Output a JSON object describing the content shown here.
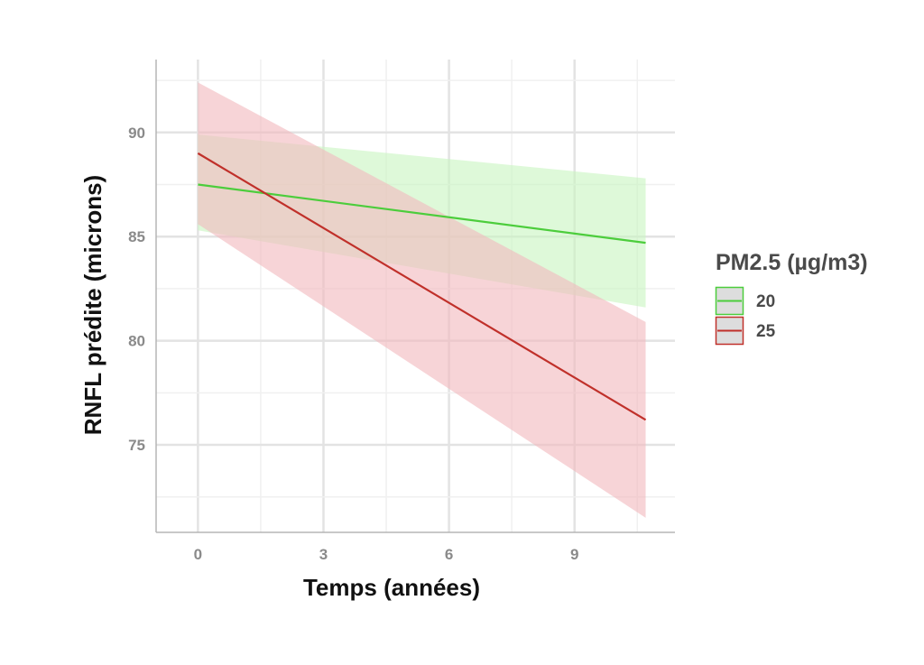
{
  "chart_data": {
    "type": "line",
    "xlabel": "Temps (années)",
    "ylabel": "RNFL prédite (microns)",
    "xlim": [
      -1,
      11.4
    ],
    "ylim": [
      70.8,
      93.5
    ],
    "x_ticks": [
      0,
      3,
      6,
      9
    ],
    "x_tick_labels": [
      "0",
      "3",
      "6",
      "9"
    ],
    "y_ticks": [
      75,
      80,
      85,
      90
    ],
    "y_tick_labels": [
      "75",
      "80",
      "85",
      "90"
    ],
    "grid": true,
    "legend": {
      "title": "PM2.5 (µg/m3)",
      "position": "right"
    },
    "series": [
      {
        "name": "20",
        "color": "#4ccd3c",
        "ribbon_color": "#c9f5c2",
        "x": [
          0,
          10.7
        ],
        "y": [
          87.5,
          84.7
        ],
        "lower": [
          85.3,
          81.6
        ],
        "upper": [
          89.9,
          87.8
        ]
      },
      {
        "name": "25",
        "color": "#c0302a",
        "ribbon_color": "#f2b9bf",
        "x": [
          0,
          10.7
        ],
        "y": [
          89.0,
          76.2
        ],
        "lower": [
          85.6,
          71.5
        ],
        "upper": [
          92.4,
          80.9
        ]
      }
    ]
  }
}
